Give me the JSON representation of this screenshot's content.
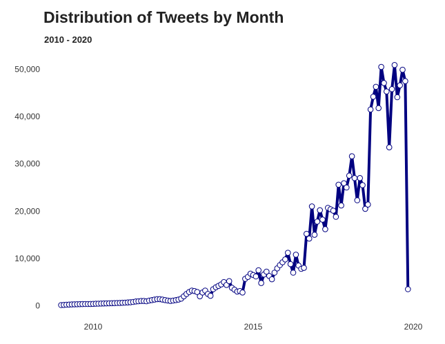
{
  "chart_data": {
    "type": "line",
    "title": "Distribution of Tweets by Month",
    "subtitle": "2010 - 2020",
    "xlabel": "",
    "ylabel": "",
    "x_axis": "date (monthly, 2009-01 to 2020-04)",
    "x_ticks": [
      "2010",
      "2015",
      "2020"
    ],
    "y_ticks": [
      "0",
      "10,000",
      "20,000",
      "30,000",
      "40,000",
      "50,000"
    ],
    "ylim": [
      -1000,
      53500
    ],
    "grid": false,
    "legend": "none",
    "colors": {
      "line": "#000080",
      "marker_fill": "#ffffff",
      "marker_stroke": "#000080"
    },
    "series": [
      {
        "start": "2009-01",
        "values": [
          150,
          180,
          220,
          250,
          280,
          300,
          320,
          340,
          350,
          360,
          370,
          380,
          400,
          420,
          440,
          460,
          480,
          500,
          520,
          540,
          560,
          580,
          600,
          620,
          650,
          700,
          750,
          800,
          900,
          950,
          1000,
          1000,
          950,
          1100,
          1200,
          1300,
          1400,
          1400,
          1300,
          1200,
          1100,
          1000,
          1100,
          1200,
          1300,
          1500,
          2000,
          2500,
          2900,
          3200,
          3100,
          2900,
          2000,
          2800,
          3200,
          2500,
          2100,
          3500,
          3900,
          4200,
          4500,
          5000,
          4400,
          5200,
          3800,
          3400,
          3000,
          3100,
          2800,
          5700,
          6100,
          6800,
          6500,
          6200,
          7500,
          4800,
          6600,
          7200,
          6300,
          5600,
          7000,
          7900,
          8600,
          9200,
          9800,
          11200,
          8800,
          7000,
          10800,
          8500,
          7800,
          8000,
          15200,
          14200,
          21000,
          15000,
          17800,
          20200,
          18200,
          16200,
          20700,
          20400,
          20100,
          18800,
          25600,
          21200,
          25900,
          25000,
          27500,
          31600,
          27000,
          22300,
          27000,
          25500,
          20500,
          21400,
          41500,
          44200,
          46300,
          41800,
          50500,
          47100,
          45300,
          33500,
          45800,
          50900,
          44100,
          46600,
          49900,
          47500,
          3500
        ]
      }
    ]
  }
}
